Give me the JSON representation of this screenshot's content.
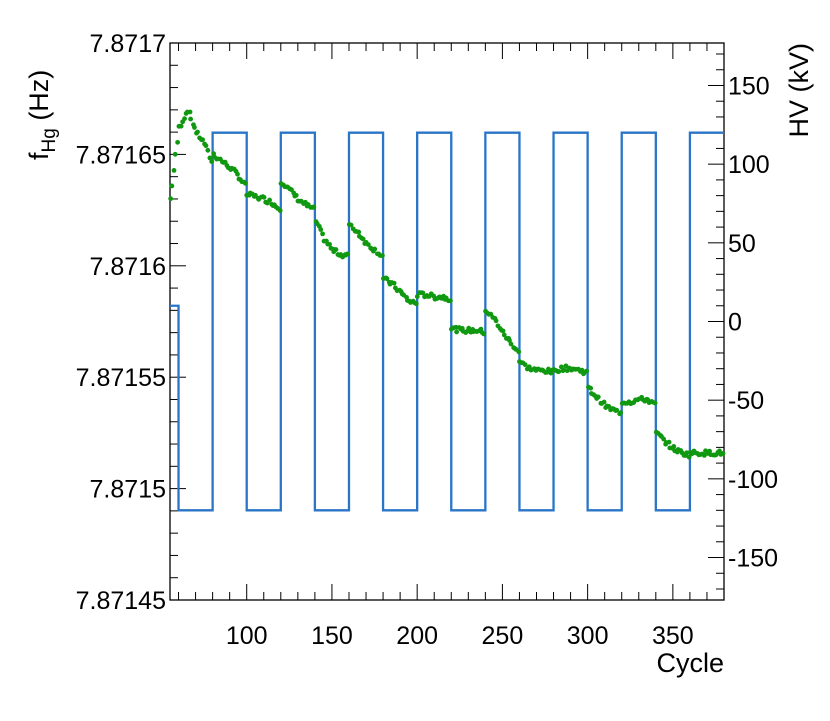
{
  "chart_data": {
    "type": "scatter",
    "title": "",
    "xlabel": "Cycle",
    "ylabel_left": {
      "main": "f",
      "sub": "Hg",
      "unit": " (Hz)"
    },
    "ylabel_right": "HV (kV)",
    "xlim": [
      55,
      380
    ],
    "ylim_left": [
      7.87145,
      7.8717
    ],
    "ylim_right": [
      -177,
      177
    ],
    "xticks": [
      100,
      150,
      200,
      250,
      300,
      350
    ],
    "xtick_labels": [
      "100",
      "150",
      "200",
      "250",
      "300",
      "350"
    ],
    "yticks_left": [
      7.8715,
      7.87155,
      7.8716,
      7.87165
    ],
    "ytick_labels_left": [
      "7.87145",
      "7.8715",
      "7.87155",
      "7.8716",
      "7.87165",
      "7.8717"
    ],
    "ytick_values_left": [
      7.87145,
      7.8715,
      7.87155,
      7.8716,
      7.87165,
      7.8717
    ],
    "ytick_labels_right": [
      "150",
      "100",
      "50",
      "0",
      "-50",
      "-100",
      "-150"
    ],
    "ytick_values_right": [
      150,
      100,
      50,
      0,
      -50,
      -100,
      -150
    ],
    "grid": false,
    "colors": {
      "frequency": "#109910",
      "hv": "#2a75c8"
    },
    "series": [
      {
        "type": "scatter",
        "axis": "left",
        "color": "#109910",
        "segments": [
          {
            "x": [
              55,
              60,
              65,
              70,
              75,
              80
            ],
            "y": [
              7.87163,
              7.871662,
              7.87167,
              7.87166,
              7.871655,
              7.871645
            ]
          },
          {
            "x": [
              80,
              85,
              90,
              95,
              100
            ],
            "y": [
              7.87165,
              7.871647,
              7.871644,
              7.87164,
              7.871635
            ]
          },
          {
            "x": [
              100,
              105,
              110,
              115,
              120
            ],
            "y": [
              7.871632,
              7.871631,
              7.87163,
              7.871628,
              7.871625
            ]
          },
          {
            "x": [
              120,
              125,
              130,
              135,
              140
            ],
            "y": [
              7.871638,
              7.871634,
              7.87163,
              7.871627,
              7.871625
            ]
          },
          {
            "x": [
              140,
              145,
              150,
              155,
              160
            ],
            "y": [
              7.87162,
              7.871612,
              7.871607,
              7.871605,
              7.871605
            ]
          },
          {
            "x": [
              160,
              165,
              170,
              175,
              180
            ],
            "y": [
              7.871618,
              7.871615,
              7.87161,
              7.871607,
              7.871604
            ]
          },
          {
            "x": [
              180,
              185,
              190,
              195,
              200
            ],
            "y": [
              7.871594,
              7.871592,
              7.871588,
              7.871584,
              7.871583
            ]
          },
          {
            "x": [
              200,
              205,
              210,
              215,
              220
            ],
            "y": [
              7.871587,
              7.871587,
              7.871586,
              7.871586,
              7.871585
            ]
          },
          {
            "x": [
              220,
              225,
              230,
              235,
              240
            ],
            "y": [
              7.871572,
              7.871571,
              7.871571,
              7.871571,
              7.87157
            ]
          },
          {
            "x": [
              240,
              245,
              250,
              255,
              260
            ],
            "y": [
              7.87158,
              7.871576,
              7.87157,
              7.871565,
              7.871561
            ]
          },
          {
            "x": [
              260,
              265,
              270,
              275,
              280
            ],
            "y": [
              7.871557,
              7.871554,
              7.871553,
              7.871553,
              7.871552
            ]
          },
          {
            "x": [
              280,
              285,
              290,
              295,
              300
            ],
            "y": [
              7.871553,
              7.871554,
              7.871554,
              7.871553,
              7.871552
            ]
          },
          {
            "x": [
              300,
              305,
              310,
              315,
              320
            ],
            "y": [
              7.871545,
              7.871541,
              7.871537,
              7.871535,
              7.871534
            ]
          },
          {
            "x": [
              320,
              325,
              330,
              335,
              340
            ],
            "y": [
              7.871539,
              7.871539,
              7.87154,
              7.87154,
              7.871537
            ]
          },
          {
            "x": [
              340,
              345,
              350,
              355,
              360
            ],
            "y": [
              7.871525,
              7.871521,
              7.871518,
              7.871516,
              7.871515
            ]
          },
          {
            "x": [
              360,
              365,
              370,
              375,
              380
            ],
            "y": [
              7.871516,
              7.871516,
              7.871516,
              7.871516,
              7.871516
            ]
          }
        ]
      },
      {
        "type": "line",
        "axis": "right",
        "color": "#2a75c8",
        "x": [
          55,
          60,
          60,
          80,
          80,
          100,
          100,
          120,
          120,
          140,
          140,
          160,
          160,
          180,
          180,
          200,
          200,
          220,
          220,
          240,
          240,
          260,
          260,
          280,
          280,
          300,
          300,
          320,
          320,
          340,
          340,
          360,
          360,
          380
        ],
        "y": [
          10,
          10,
          -120,
          -120,
          120,
          120,
          -120,
          -120,
          120,
          120,
          -120,
          -120,
          120,
          120,
          -120,
          -120,
          120,
          120,
          -120,
          -120,
          120,
          120,
          -120,
          -120,
          120,
          120,
          -120,
          -120,
          120,
          120,
          -120,
          -120,
          120,
          120
        ]
      }
    ]
  }
}
